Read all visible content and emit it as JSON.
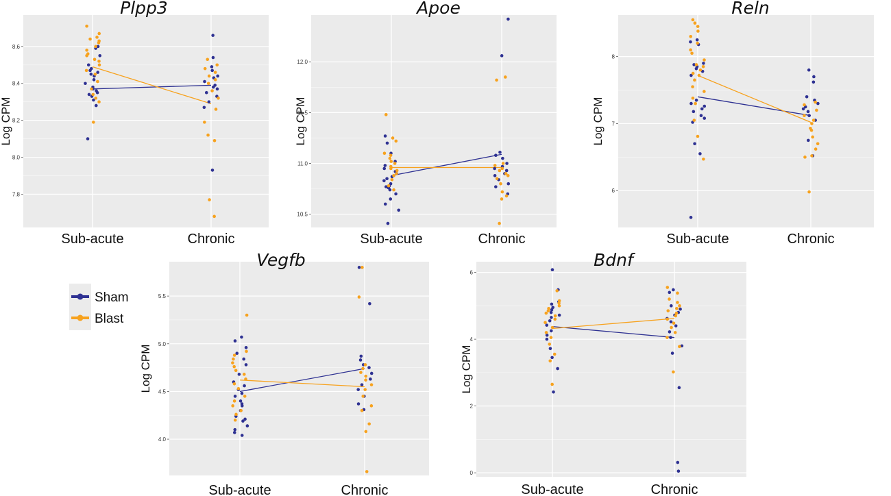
{
  "figure": {
    "description_none": null
  },
  "colors": {
    "sham": "#2e3192",
    "blast": "#f7a21e",
    "panel_bg": "#ebebeb",
    "grid": "#ffffff",
    "legend_bg": "#ebebeb"
  },
  "legend": {
    "items": [
      {
        "label": "Sham",
        "color_key": "sham"
      },
      {
        "label": "Blast",
        "color_key": "blast"
      }
    ]
  },
  "chart_data": [
    {
      "type": "scatter",
      "title": "Plpp3",
      "ylabel": "Log CPM",
      "categories": [
        "Sub-acute",
        "Chronic"
      ],
      "ylim": [
        7.62,
        8.77
      ],
      "yticks": [
        7.8,
        8.0,
        8.2,
        8.4,
        8.6
      ],
      "ytick_labels": [
        "7.8",
        "8.0",
        "8.2",
        "8.4",
        "8.6"
      ],
      "series": [
        {
          "name": "Sham",
          "means": [
            8.37,
            8.39
          ],
          "points": [
            [
              8.1,
              8.28,
              8.31,
              8.33,
              8.34,
              8.35,
              8.36,
              8.37,
              8.37,
              8.38,
              8.4,
              8.42,
              8.44,
              8.45,
              8.46,
              8.47,
              8.48,
              8.5,
              8.55,
              8.59,
              8.6
            ],
            [
              7.93,
              8.27,
              8.3,
              8.33,
              8.35,
              8.37,
              8.38,
              8.39,
              8.41,
              8.43,
              8.44,
              8.47,
              8.49,
              8.54,
              8.66
            ]
          ]
        },
        {
          "name": "Blast",
          "means": [
            8.49,
            8.29
          ],
          "points": [
            [
              8.19,
              8.3,
              8.32,
              8.34,
              8.37,
              8.41,
              8.45,
              8.47,
              8.5,
              8.52,
              8.53,
              8.55,
              8.56,
              8.58,
              8.6,
              8.62,
              8.63,
              8.64,
              8.65,
              8.67,
              8.71
            ],
            [
              7.68,
              7.77,
              8.09,
              8.12,
              8.19,
              8.26,
              8.32,
              8.36,
              8.4,
              8.42,
              8.44,
              8.46,
              8.48,
              8.5,
              8.53
            ]
          ]
        }
      ]
    },
    {
      "type": "scatter",
      "title": "Apoe",
      "ylabel": "Log CPM",
      "categories": [
        "Sub-acute",
        "Chronic"
      ],
      "ylim": [
        10.37,
        12.46
      ],
      "yticks": [
        10.5,
        11.0,
        11.5,
        12.0
      ],
      "ytick_labels": [
        "10.5",
        "11.0",
        "11.5",
        "12.0"
      ],
      "series": [
        {
          "name": "Sham",
          "means": [
            10.88,
            11.09
          ],
          "points": [
            [
              10.41,
              10.54,
              10.6,
              10.65,
              10.7,
              10.74,
              10.76,
              10.77,
              10.78,
              10.8,
              10.83,
              10.85,
              10.87,
              10.9,
              10.92,
              10.95,
              10.98,
              11.02,
              11.1,
              11.2,
              11.27
            ],
            [
              10.7,
              10.77,
              10.8,
              10.84,
              10.88,
              10.9,
              10.93,
              10.95,
              10.97,
              11.0,
              11.05,
              11.08,
              11.11,
              12.06,
              12.42
            ]
          ]
        },
        {
          "name": "Blast",
          "means": [
            10.96,
            10.96
          ],
          "points": [
            [
              10.74,
              10.78,
              10.84,
              10.88,
              10.9,
              10.93,
              10.95,
              10.97,
              11.0,
              11.02,
              11.05,
              11.08,
              11.1,
              11.22,
              11.25,
              11.48
            ],
            [
              10.41,
              10.65,
              10.68,
              10.72,
              10.8,
              10.85,
              10.88,
              10.9,
              10.93,
              10.95,
              10.98,
              11.0,
              11.82,
              11.85
            ]
          ]
        }
      ]
    },
    {
      "type": "scatter",
      "title": "Reln",
      "ylabel": "Log CPM",
      "categories": [
        "Sub-acute",
        "Chronic"
      ],
      "ylim": [
        5.45,
        8.62
      ],
      "yticks": [
        6,
        7,
        8
      ],
      "ytick_labels": [
        "6",
        "7",
        "8"
      ],
      "series": [
        {
          "name": "Sham",
          "means": [
            7.4,
            7.12
          ],
          "points": [
            [
              5.6,
              6.55,
              6.7,
              7.02,
              7.08,
              7.12,
              7.18,
              7.22,
              7.26,
              7.3,
              7.35,
              7.72,
              7.78,
              7.82,
              7.85,
              7.88,
              7.9,
              8.18,
              8.22,
              8.25
            ],
            [
              6.52,
              6.75,
              7.05,
              7.12,
              7.18,
              7.22,
              7.25,
              7.3,
              7.35,
              7.4,
              7.62,
              7.7,
              7.8
            ]
          ]
        },
        {
          "name": "Blast",
          "means": [
            7.72,
            7.02
          ],
          "points": [
            [
              6.47,
              6.81,
              7.05,
              7.3,
              7.38,
              7.48,
              7.55,
              7.65,
              7.72,
              7.75,
              7.8,
              7.85,
              7.88,
              7.95,
              8.05,
              8.1,
              8.2,
              8.3,
              8.38,
              8.45,
              8.5,
              8.55
            ],
            [
              5.98,
              6.5,
              6.52,
              6.62,
              6.7,
              6.8,
              6.9,
              6.93,
              7.0,
              7.05,
              7.12,
              7.2,
              7.28,
              7.32
            ]
          ]
        }
      ]
    },
    {
      "type": "scatter",
      "title": "Vegfb",
      "ylabel": "Log CPM",
      "categories": [
        "Sub-acute",
        "Chronic"
      ],
      "ylim": [
        3.62,
        5.86
      ],
      "yticks": [
        4.0,
        4.5,
        5.0,
        5.5
      ],
      "ytick_labels": [
        "4.0",
        "4.5",
        "5.0",
        "5.5"
      ],
      "series": [
        {
          "name": "Sham",
          "means": [
            4.5,
            4.74
          ],
          "points": [
            [
              4.04,
              4.07,
              4.1,
              4.14,
              4.19,
              4.21,
              4.24,
              4.3,
              4.35,
              4.37,
              4.4,
              4.45,
              4.48,
              4.52,
              4.56,
              4.6,
              4.68,
              4.78,
              4.84,
              4.9,
              4.96,
              5.03,
              5.07
            ],
            [
              4.31,
              4.37,
              4.45,
              4.52,
              4.57,
              4.63,
              4.69,
              4.75,
              4.78,
              4.83,
              4.87,
              5.42,
              5.8
            ]
          ]
        },
        {
          "name": "Blast",
          "means": [
            4.62,
            4.55
          ],
          "points": [
            [
              4.2,
              4.26,
              4.3,
              4.35,
              4.4,
              4.45,
              4.53,
              4.58,
              4.63,
              4.68,
              4.72,
              4.76,
              4.8,
              4.84,
              4.88,
              4.92,
              5.3
            ],
            [
              3.66,
              4.08,
              4.16,
              4.3,
              4.35,
              4.45,
              4.52,
              4.57,
              4.62,
              4.66,
              4.7,
              4.74,
              4.78,
              5.49,
              5.8
            ]
          ]
        }
      ]
    },
    {
      "type": "scatter",
      "title": "Bdnf",
      "ylabel": "Log CPM",
      "categories": [
        "Sub-acute",
        "Chronic"
      ],
      "ylim": [
        -0.12,
        6.32
      ],
      "yticks": [
        0,
        2,
        4,
        6
      ],
      "ytick_labels": [
        "0",
        "2",
        "4",
        "6"
      ],
      "series": [
        {
          "name": "Sham",
          "means": [
            4.38,
            4.05
          ],
          "points": [
            [
              2.42,
              3.12,
              3.45,
              3.72,
              4.0,
              4.12,
              4.25,
              4.42,
              4.55,
              4.65,
              4.72,
              4.8,
              4.88,
              4.95,
              5.05,
              5.12,
              5.48,
              6.08
            ],
            [
              0.05,
              0.31,
              2.55,
              3.58,
              3.8,
              4.05,
              4.22,
              4.4,
              4.52,
              4.62,
              4.72,
              4.8,
              4.9,
              5.0,
              5.4,
              5.48
            ]
          ]
        },
        {
          "name": "Blast",
          "means": [
            4.32,
            4.62
          ],
          "points": [
            [
              2.65,
              3.35,
              3.55,
              3.85,
              4.05,
              4.2,
              4.35,
              4.5,
              4.6,
              4.7,
              4.78,
              4.85,
              4.92,
              5.0,
              5.08,
              5.15,
              5.45
            ],
            [
              3.02,
              3.78,
              4.05,
              4.2,
              4.35,
              4.48,
              4.6,
              4.7,
              4.78,
              4.85,
              4.92,
              5.0,
              5.1,
              5.2,
              5.38,
              5.55
            ]
          ]
        }
      ]
    }
  ]
}
